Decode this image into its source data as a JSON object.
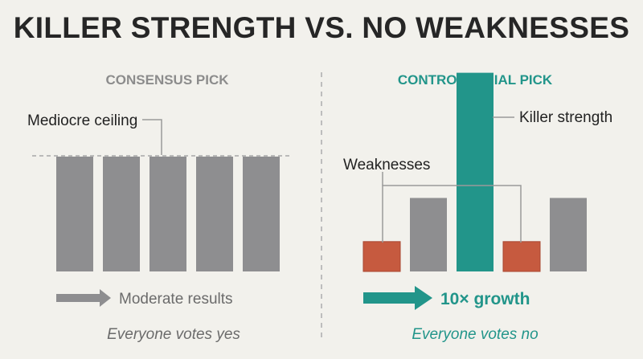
{
  "title": "KILLER STRENGTH VS. NO WEAKNESSES",
  "colors": {
    "background": "#f2f1ec",
    "title": "#262626",
    "gray_bar": "#8e8e90",
    "heading_gray": "#8c8c8c",
    "teal": "#22958a",
    "red": "#c65a3f",
    "text_dark": "#222222",
    "text_gray": "#6b6b6b",
    "divider": "#bdbdbd"
  },
  "left_panel": {
    "heading": "CONSENSUS PICK",
    "bar_levels": [
      1,
      1,
      1,
      1,
      1
    ],
    "callout": "Mediocre ceiling",
    "arrow_label": "Moderate results",
    "footer": "Everyone votes yes"
  },
  "right_panel": {
    "heading": "CONTROVERSIAL PICK",
    "bars": [
      {
        "level": 0.26,
        "kind": "weakness"
      },
      {
        "level": 0.64,
        "kind": "neutral"
      },
      {
        "level": 1.73,
        "kind": "strength"
      },
      {
        "level": 0.26,
        "kind": "weakness"
      },
      {
        "level": 0.64,
        "kind": "neutral"
      }
    ],
    "strength_callout": "Killer strength",
    "weakness_callout": "Weaknesses",
    "arrow_label": "10× growth",
    "footer": "Everyone votes no"
  }
}
